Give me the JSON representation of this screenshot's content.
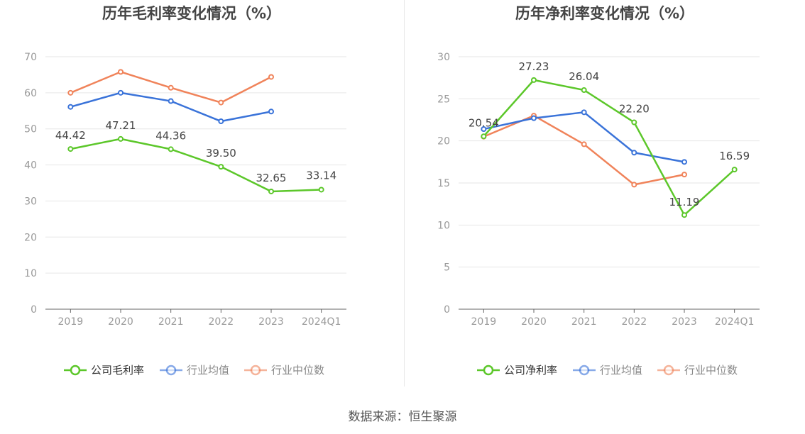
{
  "source": "数据来源：恒生聚源",
  "colors": {
    "company": "#5cc72a",
    "avg": "#3a73d9",
    "median": "#f0835a",
    "grid": "#e6e6e6",
    "axis": "#666666",
    "tick": "#999999"
  },
  "chart_data": [
    {
      "type": "line",
      "title": "历年毛利率变化情况（%）",
      "categories": [
        "2019",
        "2020",
        "2021",
        "2022",
        "2023",
        "2024Q1"
      ],
      "ylim": [
        0,
        70
      ],
      "yticks": [
        0,
        10,
        20,
        30,
        40,
        50,
        60,
        70
      ],
      "grid": true,
      "legend_position": "bottom",
      "series": [
        {
          "name": "公司毛利率",
          "color": "#5cc72a",
          "values": [
            44.42,
            47.21,
            44.36,
            39.5,
            32.65,
            33.14
          ],
          "labels": [
            "44.42",
            "47.21",
            "44.36",
            "39.50",
            "32.65",
            "33.14"
          ]
        },
        {
          "name": "行业均值",
          "color": "#3a73d9",
          "values": [
            56.1,
            60.0,
            57.7,
            52.1,
            54.8,
            null
          ]
        },
        {
          "name": "行业中位数",
          "color": "#f0835a",
          "values": [
            60.0,
            65.8,
            61.4,
            57.3,
            64.4,
            null
          ]
        }
      ]
    },
    {
      "type": "line",
      "title": "历年净利率变化情况（%）",
      "categories": [
        "2019",
        "2020",
        "2021",
        "2022",
        "2023",
        "2024Q1"
      ],
      "ylim": [
        0,
        30
      ],
      "yticks": [
        0,
        5,
        10,
        15,
        20,
        25,
        30
      ],
      "grid": true,
      "legend_position": "bottom",
      "series": [
        {
          "name": "公司净利率",
          "color": "#5cc72a",
          "values": [
            20.54,
            27.23,
            26.04,
            22.2,
            11.19,
            16.59
          ],
          "labels": [
            "20.54",
            "27.23",
            "26.04",
            "22.20",
            "11.19",
            "16.59"
          ]
        },
        {
          "name": "行业均值",
          "color": "#3a73d9",
          "values": [
            21.4,
            22.7,
            23.4,
            18.6,
            17.5,
            null
          ]
        },
        {
          "name": "行业中位数",
          "color": "#f0835a",
          "values": [
            20.5,
            23.0,
            19.6,
            14.8,
            16.0,
            null
          ]
        }
      ]
    }
  ]
}
